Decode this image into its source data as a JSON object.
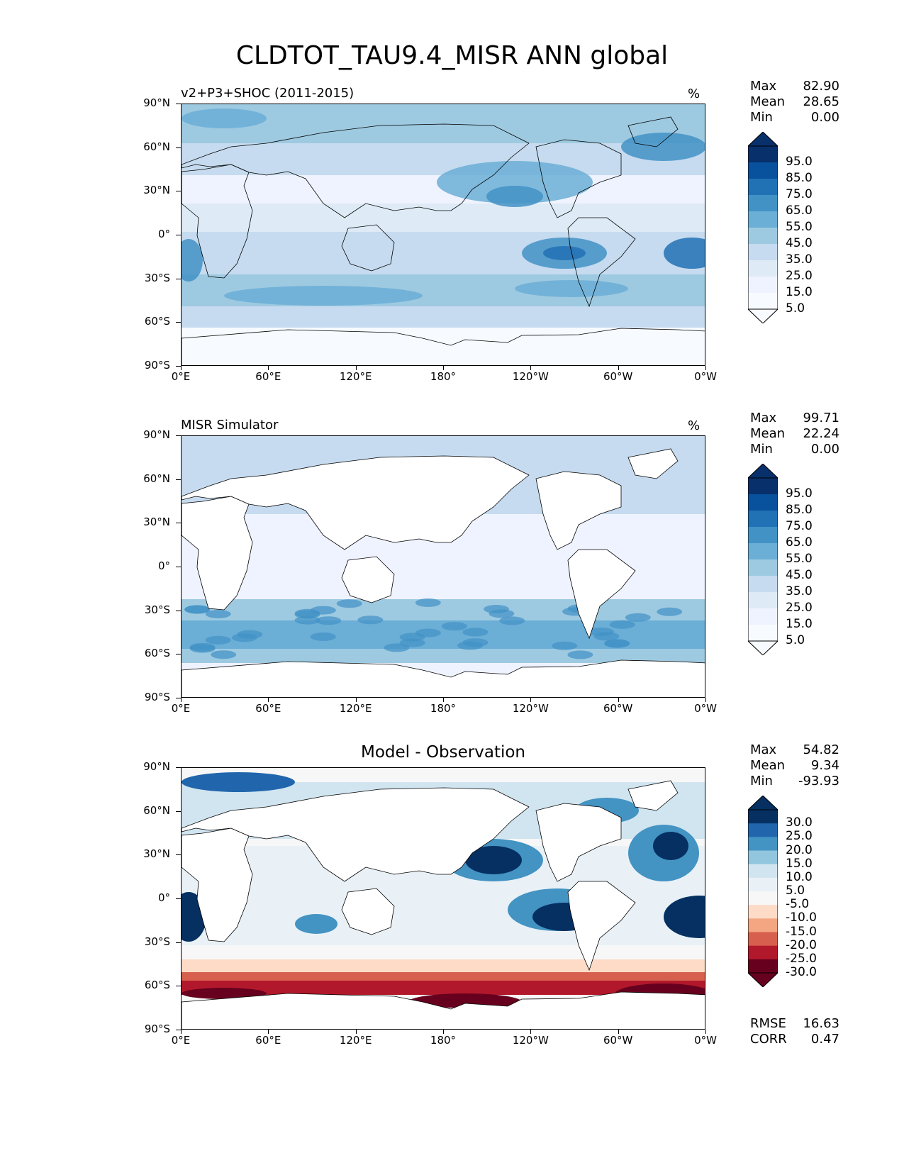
{
  "title": "CLDTOT_TAU9.4_MISR ANN global",
  "axes": {
    "lat_labels": [
      "90°N",
      "60°N",
      "30°N",
      "0°",
      "30°S",
      "60°S",
      "90°S"
    ],
    "lon_labels": [
      "0°E",
      "60°E",
      "120°E",
      "180°",
      "120°W",
      "60°W",
      "0°W"
    ]
  },
  "panels": [
    {
      "title": "v2+P3+SHOC (2011-2015)",
      "unit": "%",
      "stats": [
        {
          "k": "Max",
          "v": "82.90"
        },
        {
          "k": "Mean",
          "v": "28.65"
        },
        {
          "k": "Min",
          "v": "0.00"
        }
      ],
      "colorbar": {
        "labels": [
          "95.0",
          "85.0",
          "75.0",
          "65.0",
          "55.0",
          "45.0",
          "35.0",
          "25.0",
          "15.0",
          "5.0"
        ],
        "colors": [
          "#08306b",
          "#08519c",
          "#2171b5",
          "#4292c6",
          "#6baed6",
          "#9ecae1",
          "#c6dbef",
          "#deebf7",
          "#eff3ff",
          "#f7fbff"
        ]
      }
    },
    {
      "title": "MISR Simulator",
      "unit": "%",
      "stats": [
        {
          "k": "Max",
          "v": "99.71"
        },
        {
          "k": "Mean",
          "v": "22.24"
        },
        {
          "k": "Min",
          "v": "0.00"
        }
      ],
      "colorbar": {
        "labels": [
          "95.0",
          "85.0",
          "75.0",
          "65.0",
          "55.0",
          "45.0",
          "35.0",
          "25.0",
          "15.0",
          "5.0"
        ],
        "colors": [
          "#08306b",
          "#08519c",
          "#2171b5",
          "#4292c6",
          "#6baed6",
          "#9ecae1",
          "#c6dbef",
          "#deebf7",
          "#eff3ff",
          "#f7fbff"
        ]
      }
    },
    {
      "title": "Model - Observation",
      "unit": "",
      "stats": [
        {
          "k": "Max",
          "v": "54.82"
        },
        {
          "k": "Mean",
          "v": "9.34"
        },
        {
          "k": "Min",
          "v": "-93.93"
        }
      ],
      "extra_stats": [
        {
          "k": "RMSE",
          "v": "16.63"
        },
        {
          "k": "CORR",
          "v": "0.47"
        }
      ],
      "colorbar": {
        "labels": [
          "30.0",
          "25.0",
          "20.0",
          "15.0",
          "10.0",
          "5.0",
          "-5.0",
          "-10.0",
          "-15.0",
          "-20.0",
          "-25.0",
          "-30.0"
        ],
        "colors": [
          "#053061",
          "#2166ac",
          "#4393c3",
          "#92c5de",
          "#d1e5f0",
          "#e9f1f6",
          "#f7f7f7",
          "#fddbc7",
          "#f4a582",
          "#d6604d",
          "#b2182b",
          "#67001f"
        ]
      }
    }
  ]
}
